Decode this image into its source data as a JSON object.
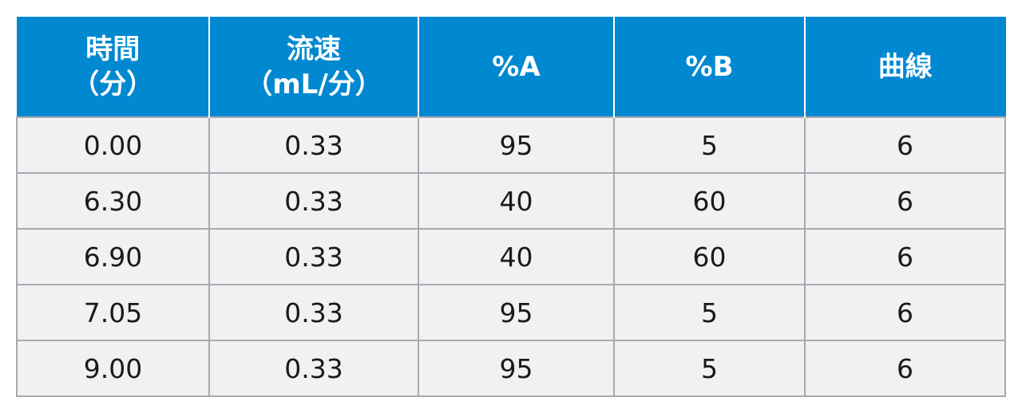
{
  "table": {
    "headers": [
      [
        "時間",
        "（分）"
      ],
      [
        "流速",
        "（mL/分）"
      ],
      [
        "%A"
      ],
      [
        "%B"
      ],
      [
        "曲線"
      ]
    ],
    "rows": [
      [
        "0.00",
        "0.33",
        "95",
        "5",
        "6"
      ],
      [
        "6.30",
        "0.33",
        "40",
        "60",
        "6"
      ],
      [
        "6.90",
        "0.33",
        "40",
        "60",
        "6"
      ],
      [
        "7.05",
        "0.33",
        "95",
        "5",
        "6"
      ],
      [
        "9.00",
        "0.33",
        "95",
        "5",
        "6"
      ]
    ]
  },
  "colors": {
    "header_bg": "#0088d1",
    "header_text": "#ffffff",
    "cell_bg": "#f1f1f4",
    "cell_text": "#1a1a1a",
    "grid": "#a9a9ad"
  }
}
